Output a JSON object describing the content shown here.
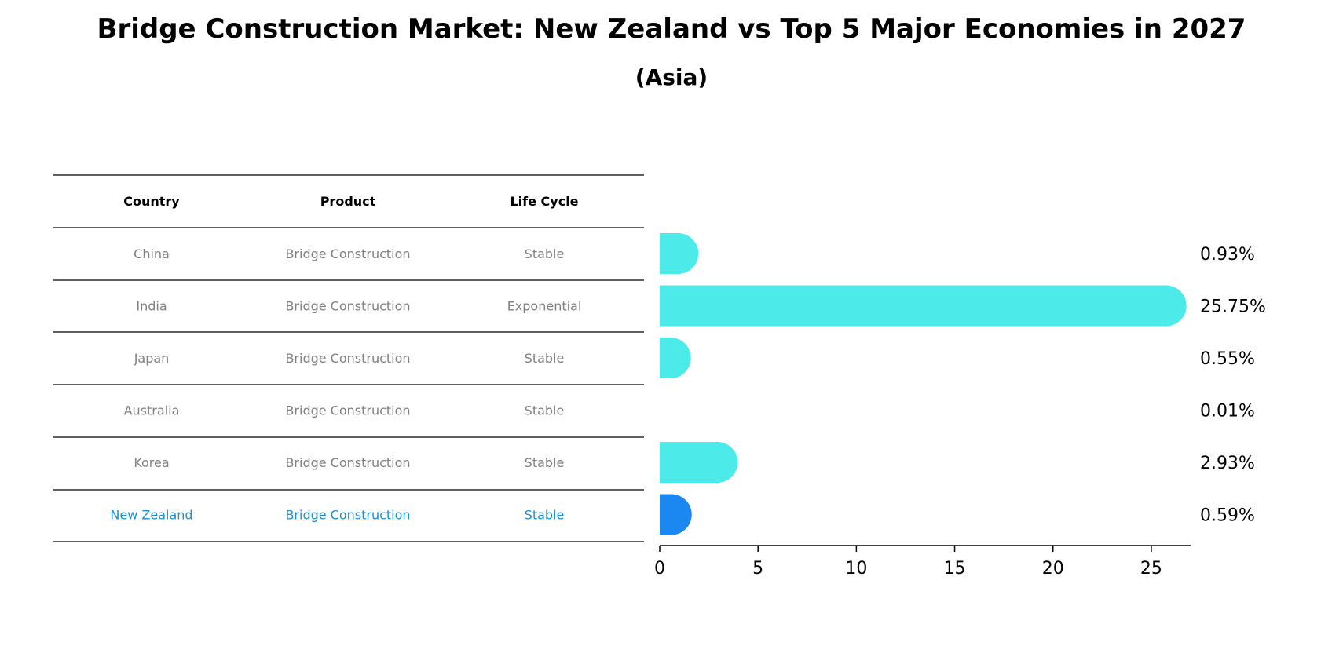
{
  "chart_data": {
    "type": "bar",
    "orientation": "horizontal",
    "title": "Bridge Construction Market: New Zealand vs Top 5 Major Economies in 2027",
    "subtitle": "(Asia)",
    "table": {
      "columns": [
        "Country",
        "Product",
        "Life Cycle"
      ],
      "rows": [
        {
          "country": "China",
          "product": "Bridge Construction",
          "life_cycle": "Stable"
        },
        {
          "country": "India",
          "product": "Bridge Construction",
          "life_cycle": "Exponential"
        },
        {
          "country": "Japan",
          "product": "Bridge Construction",
          "life_cycle": "Stable"
        },
        {
          "country": "Australia",
          "product": "Bridge Construction",
          "life_cycle": "Stable"
        },
        {
          "country": "Korea",
          "product": "Bridge Construction",
          "life_cycle": "Stable"
        },
        {
          "country": "New Zealand",
          "product": "Bridge Construction",
          "life_cycle": "Stable"
        }
      ]
    },
    "categories": [
      "China",
      "India",
      "Japan",
      "Australia",
      "Korea",
      "New Zealand"
    ],
    "values": [
      0.93,
      25.75,
      0.55,
      0.01,
      2.93,
      0.59
    ],
    "value_labels": [
      "0.93%",
      "25.75%",
      "0.55%",
      "0.01%",
      "2.93%",
      "0.59%"
    ],
    "highlight": "New Zealand",
    "xlim": [
      0,
      27
    ],
    "xticks": [
      0,
      5,
      10,
      15,
      20,
      25
    ],
    "colors": {
      "bar": "#4deaea",
      "highlight_bar": "#1a88f0",
      "highlight_text": "#1a8fd6",
      "cell_text": "#808080"
    }
  }
}
